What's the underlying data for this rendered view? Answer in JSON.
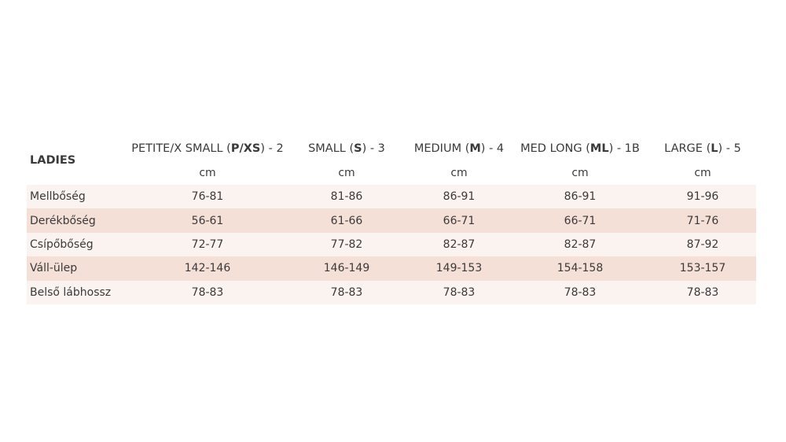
{
  "table": {
    "corner_label": "LADIES",
    "columns": [
      {
        "prefix": "PETITE/X SMALL (",
        "code": "P/XS",
        "suffix": ") - 2",
        "unit": "cm"
      },
      {
        "prefix": "SMALL (",
        "code": "S",
        "suffix": ") - 3",
        "unit": "cm"
      },
      {
        "prefix": "MEDIUM (",
        "code": "M",
        "suffix": ") - 4",
        "unit": "cm"
      },
      {
        "prefix": "MED LONG (",
        "code": "ML",
        "suffix": ") - 1B",
        "unit": "cm"
      },
      {
        "prefix": "LARGE (",
        "code": "L",
        "suffix": ") - 5",
        "unit": "cm"
      }
    ],
    "rows": [
      {
        "label": "Mellbőség",
        "values": [
          "76-81",
          "81-86",
          "86-91",
          "86-91",
          "91-96"
        ]
      },
      {
        "label": "Derékbőség",
        "values": [
          "56-61",
          "61-66",
          "66-71",
          "66-71",
          "71-76"
        ]
      },
      {
        "label": "Csípőbőség",
        "values": [
          "72-77",
          "77-82",
          "82-87",
          "82-87",
          "87-92"
        ]
      },
      {
        "label": "Váll-ülep",
        "values": [
          "142-146",
          "146-149",
          "149-153",
          "154-158",
          "153-157"
        ]
      },
      {
        "label": "Belső lábhossz",
        "values": [
          "78-83",
          "78-83",
          "78-83",
          "78-83",
          "78-83"
        ]
      }
    ],
    "colors": {
      "row_light": "#fbf3ef",
      "row_dark": "#f5e0d8",
      "text": "#3a3a3a"
    }
  }
}
